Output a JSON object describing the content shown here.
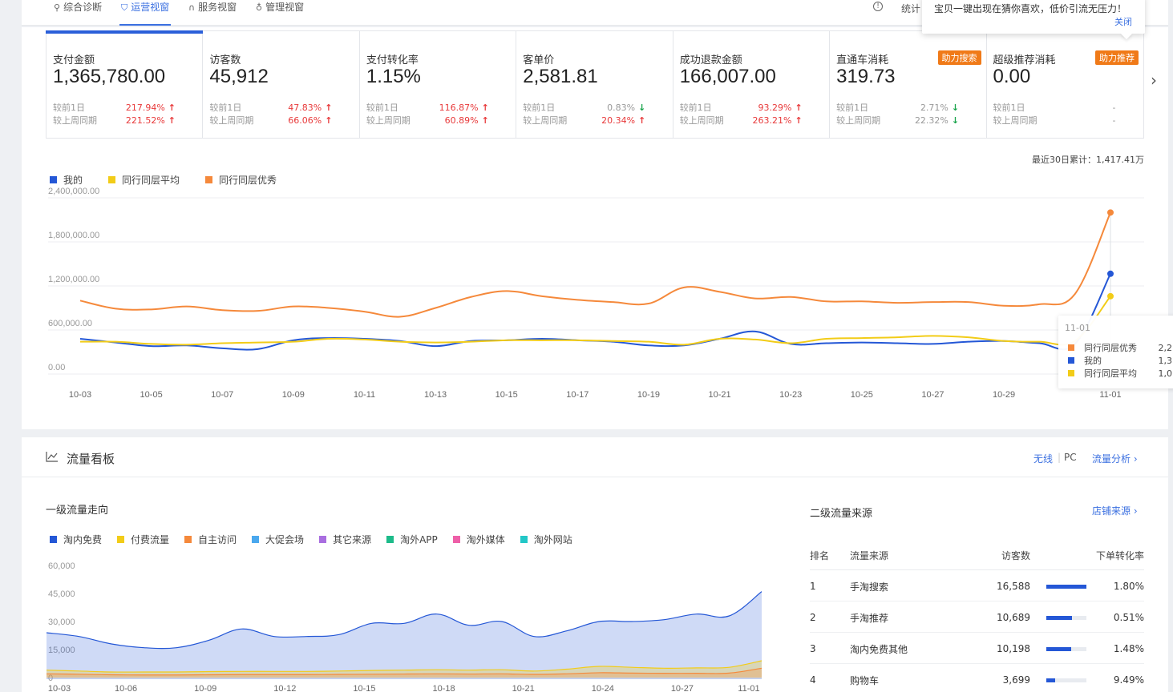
{
  "nav": {
    "tabs": [
      {
        "label": "综合诊断",
        "icon": "diagnosis-icon"
      },
      {
        "label": "运营视窗",
        "icon": "shield-icon"
      },
      {
        "label": "服务视窗",
        "icon": "headset-icon"
      },
      {
        "label": "管理视窗",
        "icon": "bulb-icon"
      }
    ],
    "active_tab": 1,
    "stat_label": "统计"
  },
  "popover": {
    "text": "宝贝一键出现在猜你喜欢，低价引流无压力！",
    "close": "关闭"
  },
  "metrics": [
    {
      "label": "支付金额",
      "value": "1,365,780.00",
      "d1_label": "较前1日",
      "d1": "217.94%",
      "d1_dir": "up",
      "w_label": "较上周同期",
      "w": "221.52%",
      "w_dir": "up",
      "badge": ""
    },
    {
      "label": "访客数",
      "value": "45,912",
      "d1_label": "较前1日",
      "d1": "47.83%",
      "d1_dir": "up",
      "w_label": "较上周同期",
      "w": "66.06%",
      "w_dir": "up",
      "badge": ""
    },
    {
      "label": "支付转化率",
      "value": "1.15%",
      "d1_label": "较前1日",
      "d1": "116.87%",
      "d1_dir": "up",
      "w_label": "较上周同期",
      "w": "60.89%",
      "w_dir": "up",
      "badge": ""
    },
    {
      "label": "客单价",
      "value": "2,581.81",
      "d1_label": "较前1日",
      "d1": "0.83%",
      "d1_dir": "down",
      "w_label": "较上周同期",
      "w": "20.34%",
      "w_dir": "up",
      "badge": ""
    },
    {
      "label": "成功退款金额",
      "value": "166,007.00",
      "d1_label": "较前1日",
      "d1": "93.29%",
      "d1_dir": "up",
      "w_label": "较上周同期",
      "w": "263.21%",
      "w_dir": "up",
      "badge": ""
    },
    {
      "label": "直通车消耗",
      "value": "319.73",
      "d1_label": "较前1日",
      "d1": "2.71%",
      "d1_dir": "down",
      "w_label": "较上周同期",
      "w": "22.32%",
      "w_dir": "down",
      "badge": "助力搜索"
    },
    {
      "label": "超级推荐消耗",
      "value": "0.00",
      "d1_label": "较前1日",
      "d1": "-",
      "d1_dir": "flat",
      "w_label": "较上周同期",
      "w": "-",
      "w_dir": "flat",
      "badge": "助力推荐"
    }
  ],
  "cumulative": "最近30日累计：1,417.41万",
  "colors": {
    "mine": "#2457d6",
    "avg": "#f2cc18",
    "best": "#f5893b",
    "grid": "#eceef1"
  },
  "chart_data": [
    {
      "type": "line",
      "x": [
        "10-03",
        "10-04",
        "10-05",
        "10-06",
        "10-07",
        "10-08",
        "10-09",
        "10-10",
        "10-11",
        "10-12",
        "10-13",
        "10-14",
        "10-15",
        "10-16",
        "10-17",
        "10-18",
        "10-19",
        "10-20",
        "10-21",
        "10-22",
        "10-23",
        "10-24",
        "10-25",
        "10-26",
        "10-27",
        "10-28",
        "10-29",
        "10-30",
        "10-31",
        "11-01"
      ],
      "x_ticks": [
        "10-03",
        "10-05",
        "10-07",
        "10-09",
        "10-11",
        "10-13",
        "10-15",
        "10-17",
        "10-19",
        "10-21",
        "10-23",
        "10-25",
        "10-27",
        "10-29",
        "11-01"
      ],
      "y_ticks": [
        "0.00",
        "600,000.00",
        "1,200,000.00",
        "1,800,000.00",
        "2,400,000.00"
      ],
      "ylim": [
        0,
        2400000
      ],
      "series": [
        {
          "name": "我的",
          "color": "#2457d6",
          "values": [
            480000,
            430000,
            380000,
            390000,
            350000,
            340000,
            460000,
            490000,
            480000,
            450000,
            380000,
            450000,
            460000,
            480000,
            460000,
            440000,
            390000,
            390000,
            480000,
            580000,
            410000,
            420000,
            430000,
            420000,
            410000,
            440000,
            450000,
            420000,
            410000,
            1365780
          ]
        },
        {
          "name": "同行同层平均",
          "color": "#f2cc18",
          "values": [
            440000,
            440000,
            410000,
            400000,
            420000,
            430000,
            440000,
            480000,
            470000,
            440000,
            430000,
            440000,
            460000,
            460000,
            460000,
            450000,
            440000,
            400000,
            480000,
            470000,
            420000,
            480000,
            490000,
            500000,
            520000,
            500000,
            450000,
            440000,
            450000,
            1060000
          ]
        },
        {
          "name": "同行同层优秀",
          "color": "#f5893b",
          "values": [
            1000000,
            890000,
            880000,
            920000,
            870000,
            860000,
            920000,
            900000,
            850000,
            780000,
            900000,
            1050000,
            1130000,
            1060000,
            1010000,
            980000,
            960000,
            1180000,
            1120000,
            1030000,
            1050000,
            990000,
            990000,
            970000,
            980000,
            980000,
            930000,
            950000,
            1090000,
            2200000
          ]
        }
      ],
      "legend": [
        "我的",
        "同行同层平均",
        "同行同层优秀"
      ],
      "legend_position": "top-left",
      "grid": true
    },
    {
      "type": "area",
      "x_ticks": [
        "10-03",
        "10-06",
        "10-09",
        "10-12",
        "10-15",
        "10-18",
        "10-21",
        "10-24",
        "10-27",
        "11-01"
      ],
      "y_ticks": [
        "0",
        "15,000",
        "30,000",
        "45,000",
        "60,000"
      ],
      "ylim": [
        0,
        60000
      ],
      "series": [
        {
          "name": "淘内免费",
          "color": "#2457d6",
          "values": [
            24000,
            22000,
            18000,
            16000,
            16000,
            20000,
            26000,
            22000,
            22000,
            23000,
            29000,
            29000,
            34000,
            28000,
            30000,
            22000,
            25000,
            30000,
            30000,
            31000,
            34000,
            33000,
            46000
          ]
        },
        {
          "name": "付费流量",
          "color": "#f2cc18",
          "values": [
            4000,
            3500,
            3000,
            3000,
            3000,
            3200,
            3300,
            3300,
            3300,
            3500,
            3800,
            4000,
            4200,
            4000,
            4200,
            3500,
            4500,
            6000,
            5500,
            5000,
            5200,
            5500,
            9000
          ]
        },
        {
          "name": "自主访问",
          "color": "#f5893b",
          "values": [
            2000,
            1800,
            1500,
            1400,
            1400,
            1500,
            1600,
            1600,
            1600,
            1700,
            1800,
            1900,
            2000,
            1900,
            2000,
            1700,
            2000,
            2600,
            2400,
            2300,
            2300,
            2400,
            5000
          ]
        }
      ],
      "legend": [
        "淘内免费",
        "付费流量",
        "自主访问",
        "大促会场",
        "其它来源",
        "淘外APP",
        "淘外媒体",
        "淘外网站"
      ],
      "legend_colors": [
        "#2457d6",
        "#f2cc18",
        "#f5893b",
        "#4aa8ee",
        "#a96ee0",
        "#1dbb8a",
        "#ee5fa8",
        "#22c7c7"
      ],
      "legend_position": "top-left",
      "grid": false
    }
  ],
  "tooltip": {
    "date": "11-01",
    "rows": [
      {
        "name": "同行同层优秀",
        "color": "#f5893b",
        "value": "2,2"
      },
      {
        "name": "我的",
        "color": "#2457d6",
        "value": "1,3"
      },
      {
        "name": "同行同层平均",
        "color": "#f2cc18",
        "value": "1,0"
      }
    ]
  },
  "traffic": {
    "title": "流量看板",
    "wireless": "无线",
    "sep": "|",
    "pc": "PC",
    "analysis": "流量分析 ›",
    "first_level_title": "一级流量走向",
    "second_level_title": "二级流量来源",
    "shop_source": "店铺来源 ›",
    "table": {
      "headers": [
        "排名",
        "流量来源",
        "访客数",
        "下单转化率"
      ],
      "rows": [
        {
          "rank": "1",
          "source": "手淘搜索",
          "visitors": "16,588",
          "share": 1.0,
          "cvr": "1.80%"
        },
        {
          "rank": "2",
          "source": "手淘推荐",
          "visitors": "10,689",
          "share": 0.644,
          "cvr": "0.51%"
        },
        {
          "rank": "3",
          "source": "淘内免费其他",
          "visitors": "10,198",
          "share": 0.615,
          "cvr": "1.48%"
        },
        {
          "rank": "4",
          "source": "购物车",
          "visitors": "3,699",
          "share": 0.223,
          "cvr": "9.49%"
        }
      ]
    }
  }
}
